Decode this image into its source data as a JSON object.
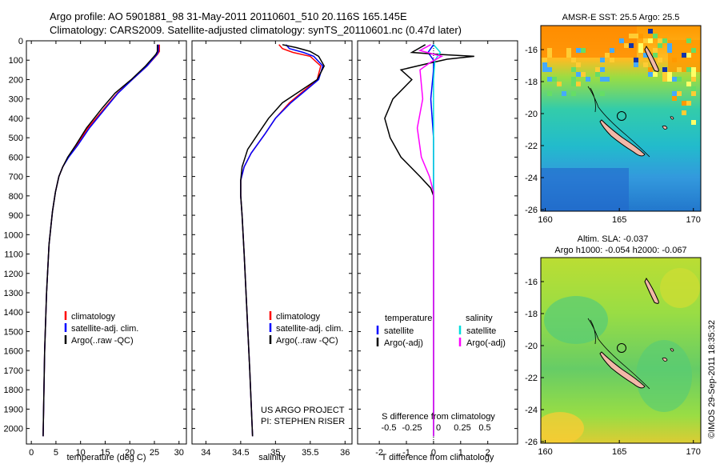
{
  "header": {
    "line1": "Argo profile: AO 5901881_98 31-May-2011 20110601_510 20.116S 165.145E",
    "line2": "Climatology: CARS2009. Satellite-adjusted climatology: synTS_20110601.nc (0.47d later)"
  },
  "depth_ticks": [
    0,
    100,
    200,
    300,
    400,
    500,
    600,
    700,
    800,
    900,
    1000,
    1100,
    1200,
    1300,
    1400,
    1500,
    1600,
    1700,
    1800,
    1900,
    2000
  ],
  "colors": {
    "climatology": "#ff0000",
    "satellite": "#0000ff",
    "argo": "#000000",
    "sal_satellite": "#00dddd",
    "sal_argo": "#ff00ff",
    "land": "#f2b8a8"
  },
  "chart_data": [
    {
      "type": "line",
      "xlabel": "temperature (deg C)",
      "xticks": [
        0,
        5,
        10,
        15,
        20,
        25,
        30
      ],
      "xlim": [
        -1,
        31.5
      ],
      "ylim": [
        0,
        2080
      ],
      "legend": [
        "climatology",
        "satellite-adj. clim.",
        "Argo(..raw -QC)"
      ],
      "series": [
        {
          "name": "climatology",
          "color": "#ff0000",
          "points": [
            [
              26,
              20
            ],
            [
              26,
              55
            ],
            [
              25.6,
              70
            ],
            [
              23.5,
              130
            ],
            [
              20.5,
              200
            ],
            [
              17.5,
              270
            ],
            [
              14.8,
              350
            ],
            [
              11.5,
              450
            ],
            [
              9.2,
              540
            ],
            [
              7.5,
              600
            ],
            [
              6.4,
              650
            ],
            [
              5.6,
              700
            ],
            [
              4.9,
              780
            ],
            [
              4.3,
              880
            ],
            [
              3.6,
              1050
            ],
            [
              3.1,
              1300
            ],
            [
              2.7,
              1600
            ],
            [
              2.5,
              1900
            ],
            [
              2.4,
              2040
            ]
          ]
        },
        {
          "name": "satellite-adj. clim.",
          "color": "#0000ff",
          "points": [
            [
              25.8,
              20
            ],
            [
              25.8,
              55
            ],
            [
              25.5,
              70
            ],
            [
              23.5,
              130
            ],
            [
              20.5,
              200
            ],
            [
              17.6,
              270
            ],
            [
              15,
              350
            ],
            [
              11.8,
              450
            ],
            [
              9.4,
              540
            ],
            [
              7.6,
              600
            ],
            [
              6.4,
              650
            ],
            [
              5.6,
              700
            ],
            [
              4.9,
              780
            ],
            [
              4.3,
              880
            ],
            [
              3.6,
              1050
            ],
            [
              3.1,
              1300
            ],
            [
              2.7,
              1600
            ],
            [
              2.5,
              1900
            ],
            [
              2.4,
              2040
            ]
          ]
        },
        {
          "name": "Argo(..raw -QC)",
          "color": "#000000",
          "points": [
            [
              25.6,
              20
            ],
            [
              25.6,
              55
            ],
            [
              25.3,
              70
            ],
            [
              23.2,
              130
            ],
            [
              20.3,
              200
            ],
            [
              17,
              270
            ],
            [
              14.3,
              350
            ],
            [
              11.2,
              450
            ],
            [
              9,
              540
            ],
            [
              7.4,
              600
            ],
            [
              6.4,
              650
            ],
            [
              5.6,
              700
            ],
            [
              4.9,
              780
            ],
            [
              4.3,
              880
            ],
            [
              3.6,
              1050
            ],
            [
              3.1,
              1300
            ],
            [
              2.7,
              1600
            ],
            [
              2.5,
              1900
            ],
            [
              2.4,
              2040
            ]
          ]
        }
      ]
    },
    {
      "type": "line",
      "xlabel": "salinity",
      "xticks": [
        34,
        34.5,
        35,
        35.5,
        36
      ],
      "xlim": [
        33.8,
        36.1
      ],
      "ylim": [
        0,
        2080
      ],
      "legend": [
        "climatology",
        "satellite-adj. clim.",
        "Argo(..raw -QC)"
      ],
      "annotation": [
        "US ARGO PROJECT",
        "PI: STEPHEN RISER"
      ],
      "series": [
        {
          "name": "climatology",
          "color": "#ff0000",
          "points": [
            [
              35.05,
              20
            ],
            [
              35.1,
              40
            ],
            [
              35.25,
              60
            ],
            [
              35.5,
              80
            ],
            [
              35.65,
              130
            ],
            [
              35.6,
              200
            ],
            [
              35.4,
              260
            ],
            [
              35.2,
              320
            ],
            [
              35.0,
              400
            ],
            [
              34.85,
              480
            ],
            [
              34.65,
              580
            ],
            [
              34.55,
              650
            ],
            [
              34.5,
              720
            ],
            [
              34.5,
              800
            ],
            [
              34.52,
              900
            ],
            [
              34.55,
              1100
            ],
            [
              34.59,
              1400
            ],
            [
              34.63,
              1700
            ],
            [
              34.67,
              2040
            ]
          ]
        },
        {
          "name": "satellite-adj. clim.",
          "color": "#0000ff",
          "points": [
            [
              35.15,
              20
            ],
            [
              35.2,
              40
            ],
            [
              35.4,
              60
            ],
            [
              35.55,
              80
            ],
            [
              35.68,
              130
            ],
            [
              35.62,
              200
            ],
            [
              35.42,
              260
            ],
            [
              35.22,
              320
            ],
            [
              35.0,
              400
            ],
            [
              34.85,
              480
            ],
            [
              34.65,
              580
            ],
            [
              34.55,
              650
            ],
            [
              34.5,
              720
            ],
            [
              34.5,
              800
            ],
            [
              34.52,
              900
            ],
            [
              34.55,
              1100
            ],
            [
              34.59,
              1400
            ],
            [
              34.63,
              1700
            ],
            [
              34.67,
              2040
            ]
          ]
        },
        {
          "name": "Argo(..raw -QC)",
          "color": "#000000",
          "points": [
            [
              35.1,
              20
            ],
            [
              35.3,
              35
            ],
            [
              35.5,
              55
            ],
            [
              35.62,
              80
            ],
            [
              35.7,
              130
            ],
            [
              35.6,
              200
            ],
            [
              35.35,
              260
            ],
            [
              35.1,
              320
            ],
            [
              34.9,
              400
            ],
            [
              34.75,
              480
            ],
            [
              34.6,
              560
            ],
            [
              34.52,
              650
            ],
            [
              34.5,
              720
            ],
            [
              34.5,
              800
            ],
            [
              34.52,
              900
            ],
            [
              34.55,
              1100
            ],
            [
              34.59,
              1400
            ],
            [
              34.63,
              1700
            ],
            [
              34.67,
              2040
            ]
          ]
        }
      ]
    },
    {
      "type": "line",
      "xlabel": "T difference from climatology",
      "xticks": [
        -2,
        -1,
        0,
        1,
        2
      ],
      "xlim": [
        -2.8,
        3.1
      ],
      "top_label": "S difference from climatology",
      "top_ticks": [
        -0.5,
        -0.25,
        0,
        0.25,
        0.5
      ],
      "ylim": [
        0,
        2080
      ],
      "legend_left_title": "temperature",
      "legend_right_title": "salinity",
      "legend_left": [
        "satellite",
        "Argo(-adj)"
      ],
      "legend_right": [
        "satellite",
        "Argo(-adj)"
      ],
      "series": [
        {
          "name": "temperature satellite",
          "color": "#0000ff",
          "points": [
            [
              0,
              20
            ],
            [
              -0.2,
              60
            ],
            [
              0,
              100
            ],
            [
              0,
              150
            ],
            [
              -0.1,
              300
            ],
            [
              0,
              500
            ],
            [
              0,
              2040
            ]
          ]
        },
        {
          "name": "temperature Argo(-adj)",
          "color": "#000000",
          "points": [
            [
              -0.3,
              20
            ],
            [
              -0.8,
              60
            ],
            [
              0.2,
              70
            ],
            [
              1.5,
              80
            ],
            [
              0.5,
              95
            ],
            [
              -0.3,
              120
            ],
            [
              -1.2,
              150
            ],
            [
              -0.8,
              200
            ],
            [
              -1.5,
              300
            ],
            [
              -1.8,
              400
            ],
            [
              -1.6,
              500
            ],
            [
              -1.2,
              600
            ],
            [
              -0.5,
              700
            ],
            [
              -0.1,
              760
            ],
            [
              0,
              800
            ],
            [
              0,
              2040
            ]
          ]
        },
        {
          "name": "salinity satellite",
          "color": "#00dddd",
          "points": [
            [
              0,
              20
            ],
            [
              0.25,
              60
            ],
            [
              0.05,
              100
            ],
            [
              0,
              200
            ],
            [
              0,
              2040
            ]
          ]
        },
        {
          "name": "salinity Argo(-adj)",
          "color": "#ff00ff",
          "points": [
            [
              -0.1,
              20
            ],
            [
              -0.5,
              50
            ],
            [
              0.3,
              80
            ],
            [
              -0.1,
              110
            ],
            [
              -0.5,
              150
            ],
            [
              -0.4,
              300
            ],
            [
              -0.6,
              450
            ],
            [
              -0.45,
              600
            ],
            [
              -0.15,
              700
            ],
            [
              0,
              780
            ],
            [
              0,
              2040
            ]
          ]
        }
      ]
    }
  ],
  "maps": [
    {
      "title": "AMSR-E SST: 25.5 Argo: 25.5",
      "lon_ticks": [
        160,
        165,
        170
      ],
      "lat_ticks": [
        -16,
        -18,
        -20,
        -22,
        -24,
        -26
      ]
    },
    {
      "title1": "Altim. SLA: -0.037",
      "title2": "Argo h1000: -0.054 h2000: -0.067",
      "lon_ticks": [
        160,
        165,
        170
      ],
      "lat_ticks": [
        -16,
        -18,
        -20,
        -22,
        -24,
        -26
      ]
    }
  ],
  "footer": "©IMOS 29-Sep-2011 18:35:32"
}
